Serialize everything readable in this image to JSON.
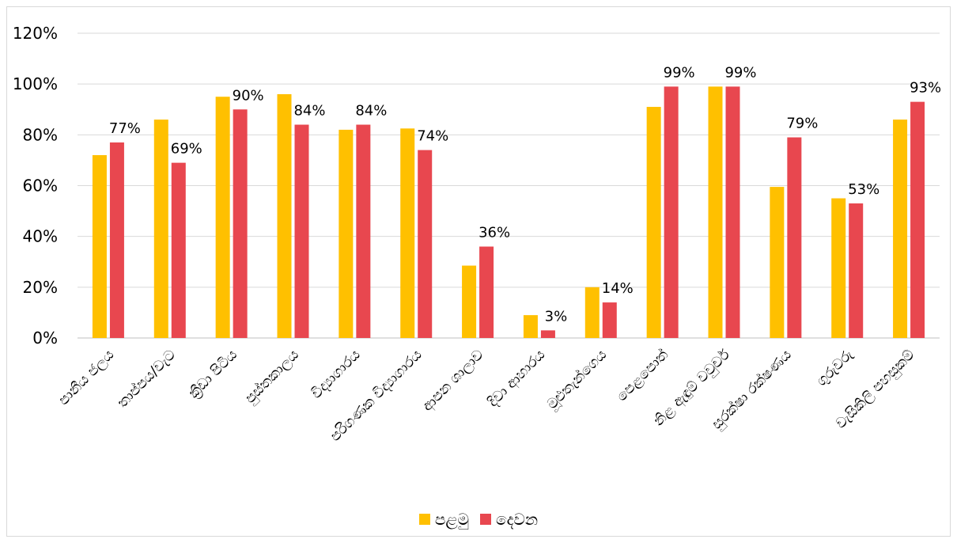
{
  "chart_data": {
    "type": "bar",
    "categories": [
      "පානීය ජලය",
      "තාප්පය/වැට",
      "ක්‍රීඩා පිටිය",
      "පුස්තකාලය",
      "විද්‍යාගාරය",
      "පරිගණක විද්‍යාගාරය",
      "ආපන ශාලාව",
      "දිවා ආහාරය",
      "මූළුතැන්ගෙය",
      "පෙළපොත්",
      "නිළ ඇඳුම් වවුචර්",
      "සුරක්ෂා රක්ෂණය",
      "ගුරුවරු",
      "වැසිකිලි පහසුකම්"
    ],
    "series": [
      {
        "name": "පළමු",
        "color": "#FFC000",
        "values": [
          72,
          86,
          95,
          96,
          82,
          82.5,
          28.5,
          9,
          20,
          91,
          99,
          59.5,
          55,
          86
        ]
      },
      {
        "name": "දෙවන",
        "color": "#E8474F",
        "values": [
          77,
          69,
          90,
          84,
          84,
          74,
          36,
          3,
          14,
          99,
          99,
          79,
          53,
          93
        ]
      }
    ],
    "data_labels": [
      "77%",
      "69%",
      "90%",
      "84%",
      "84%",
      "74%",
      "36%",
      "3%",
      "14%",
      "99%",
      "99%",
      "79%",
      "53%",
      "93%"
    ],
    "y_ticks": [
      "0%",
      "20%",
      "40%",
      "60%",
      "80%",
      "100%",
      "120%"
    ],
    "ylim": [
      0,
      120
    ],
    "grid": true,
    "legend": "bottom",
    "xlabel": "",
    "ylabel": "",
    "title": ""
  }
}
